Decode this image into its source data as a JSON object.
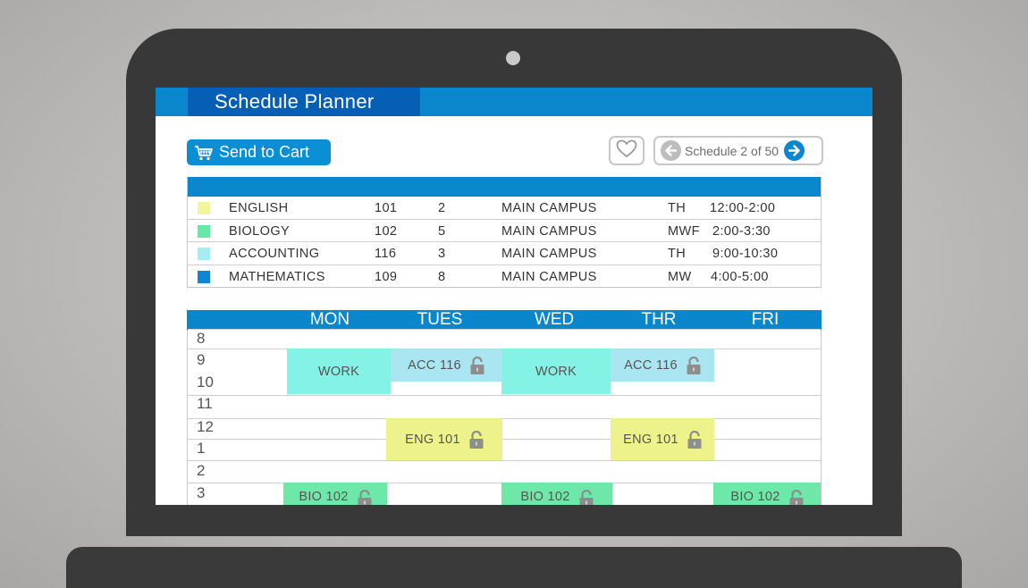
{
  "app": {
    "title": "Schedule Planner"
  },
  "toolbar": {
    "send_to_cart_label": "Send to Cart",
    "schedule_label": "Schedule 2 of 50",
    "icons": [
      "cart-icon",
      "heart-icon",
      "arrow-left-icon",
      "arrow-right-icon"
    ]
  },
  "courses": [
    {
      "color": "#f4f59a",
      "name": "ENGLISH",
      "number": "101",
      "section": "2",
      "location": "MAIN CAMPUS",
      "days": "TH",
      "time": "12:00-2:00"
    },
    {
      "color": "#66e8a6",
      "name": "BIOLOGY",
      "number": "102",
      "section": "5",
      "location": "MAIN CAMPUS",
      "days": "MWF",
      "time": "2:00-3:30"
    },
    {
      "color": "#a6ecf4",
      "name": "ACCOUNTING",
      "number": "116",
      "section": "3",
      "location": "MAIN CAMPUS",
      "days": "TH",
      "time": "9:00-10:30"
    },
    {
      "color": "#1085d6",
      "name": "MATHEMATICS",
      "number": "109",
      "section": "8",
      "location": "MAIN CAMPUS",
      "days": "MW",
      "time": "4:00-5:00"
    }
  ],
  "calendar": {
    "days": [
      "MON",
      "TUES",
      "WED",
      "THR",
      "FRI"
    ],
    "hours": [
      "8",
      "9",
      "10",
      "11",
      "12",
      "1",
      "2",
      "3"
    ],
    "events": [
      {
        "day": "MON",
        "label": "WORK",
        "locked": false,
        "color": "#84f2e4"
      },
      {
        "day": "TUES",
        "label": "ACC 116",
        "locked": true,
        "color": "#a9e6f2"
      },
      {
        "day": "WED",
        "label": "WORK",
        "locked": false,
        "color": "#84f2e4"
      },
      {
        "day": "THR",
        "label": "ACC 116",
        "locked": true,
        "color": "#a9e6f2"
      },
      {
        "day": "TUES",
        "label": "ENG 101",
        "locked": true,
        "color": "#eef28a"
      },
      {
        "day": "THR",
        "label": "ENG 101",
        "locked": true,
        "color": "#eef28a"
      },
      {
        "day": "MON",
        "label": "BIO 102",
        "locked": true,
        "color": "#6ee8a8"
      },
      {
        "day": "WED",
        "label": "BIO 102",
        "locked": true,
        "color": "#6ee8a8"
      },
      {
        "day": "FRI",
        "label": "BIO 102",
        "locked": true,
        "color": "#6ee8a8"
      }
    ]
  },
  "colors": {
    "header_blue": "#0a86cc",
    "title_blue": "#065fb5",
    "laptop": "#383838"
  }
}
